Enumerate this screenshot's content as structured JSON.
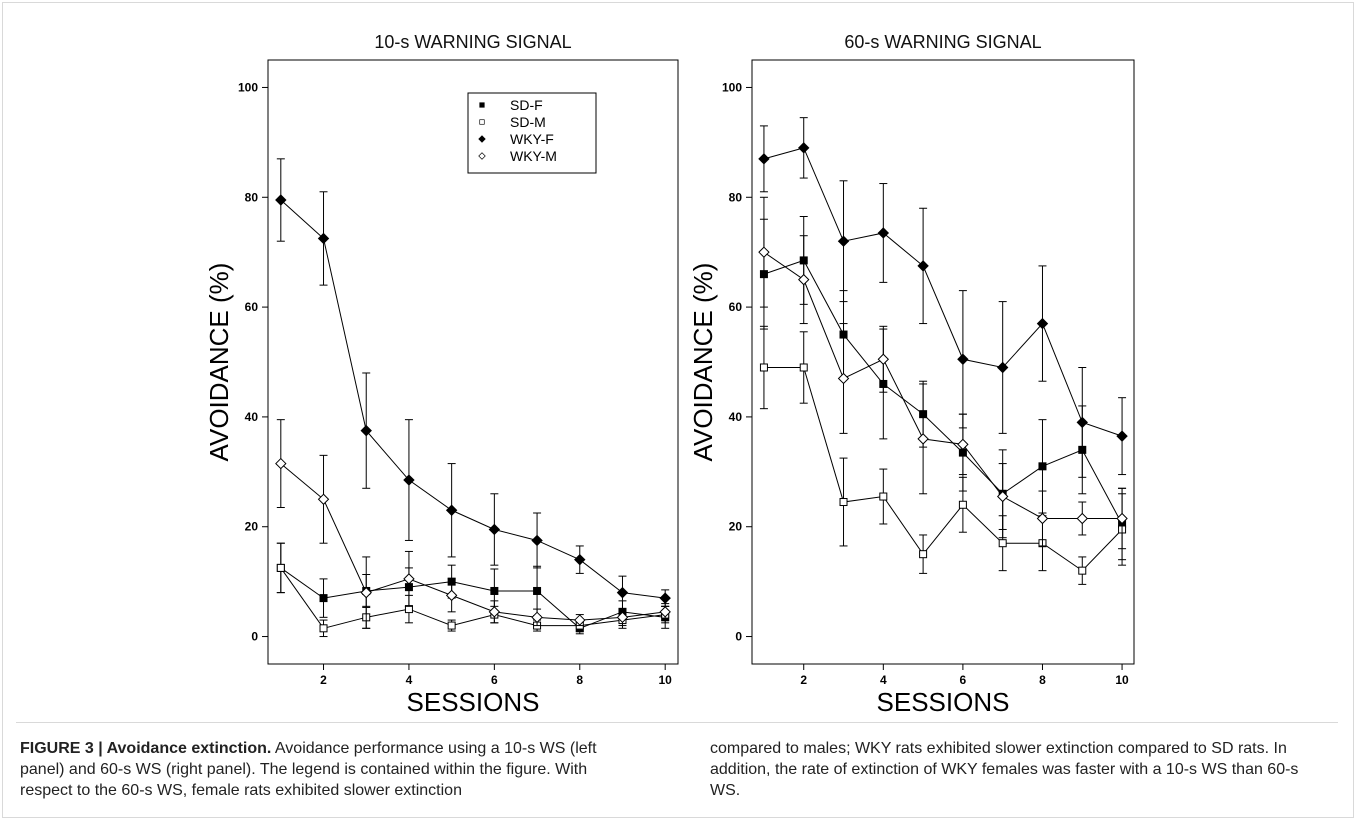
{
  "chart_data": [
    {
      "type": "line",
      "title": "10-s WARNING SIGNAL",
      "xlabel": "SESSIONS",
      "ylabel": "AVOIDANCE (%)",
      "xlim": [
        0.7,
        10.3
      ],
      "ylim": [
        -5,
        105
      ],
      "xticks": [
        2,
        4,
        6,
        8,
        10
      ],
      "yticks": [
        0,
        20,
        40,
        60,
        80,
        100
      ],
      "x": [
        1,
        2,
        3,
        4,
        5,
        6,
        7,
        8,
        9,
        10
      ],
      "legend": {
        "placement": "top-right"
      },
      "series": [
        {
          "name": "SD-F",
          "marker": "filled-square",
          "values": [
            12.5,
            7,
            8.3,
            9,
            10,
            8.3,
            8.3,
            1.5,
            4.5,
            3.5
          ],
          "errors": [
            4.5,
            3.5,
            3,
            3.5,
            3,
            4,
            4.5,
            1,
            2,
            2
          ]
        },
        {
          "name": "SD-M",
          "marker": "open-square",
          "values": [
            12.5,
            1.5,
            3.5,
            5,
            2,
            4,
            2,
            2,
            3,
            4
          ],
          "errors": [
            4.5,
            1.5,
            2,
            2.5,
            1,
            1.5,
            1,
            1,
            1.5,
            1.5
          ]
        },
        {
          "name": "WKY-F",
          "marker": "filled-diamond",
          "values": [
            79.5,
            72.5,
            37.5,
            28.5,
            23,
            19.5,
            17.5,
            14,
            8,
            7
          ],
          "errors": [
            7.5,
            8.5,
            10.5,
            11,
            8.5,
            6.5,
            5,
            2.5,
            3,
            1.5
          ]
        },
        {
          "name": "WKY-M",
          "marker": "open-diamond",
          "values": [
            31.5,
            25,
            8,
            10.5,
            7.5,
            4.5,
            3.5,
            3,
            3.5,
            4.5
          ],
          "errors": [
            8,
            8,
            6.5,
            5,
            3,
            2,
            1.5,
            1,
            1.5,
            1.5
          ]
        }
      ]
    },
    {
      "type": "line",
      "title": "60-s WARNING SIGNAL",
      "xlabel": "SESSIONS",
      "ylabel": "AVOIDANCE (%)",
      "xlim": [
        0.7,
        10.3
      ],
      "ylim": [
        -5,
        105
      ],
      "xticks": [
        2,
        4,
        6,
        8,
        10
      ],
      "yticks": [
        0,
        20,
        40,
        60,
        80,
        100
      ],
      "x": [
        1,
        2,
        3,
        4,
        5,
        6,
        7,
        8,
        9,
        10
      ],
      "series": [
        {
          "name": "SD-F",
          "marker": "filled-square",
          "values": [
            66,
            68.5,
            55,
            46,
            40.5,
            33.5,
            26,
            31,
            34,
            20.5
          ],
          "errors": [
            10,
            8,
            8,
            10,
            6,
            7,
            8,
            8.5,
            8,
            6.5
          ]
        },
        {
          "name": "SD-M",
          "marker": "open-square",
          "values": [
            49,
            49,
            24.5,
            25.5,
            15,
            24,
            17,
            17,
            12,
            19.5
          ],
          "errors": [
            7.5,
            6.5,
            8,
            5,
            3.5,
            5,
            5,
            5,
            2.5,
            6.5
          ]
        },
        {
          "name": "WKY-F",
          "marker": "filled-diamond",
          "values": [
            87,
            89,
            72,
            73.5,
            67.5,
            50.5,
            49,
            57,
            39,
            36.5
          ],
          "errors": [
            6,
            5.5,
            11,
            9,
            10.5,
            12.5,
            12,
            10.5,
            10,
            7
          ]
        },
        {
          "name": "WKY-M",
          "marker": "open-diamond",
          "values": [
            70,
            65,
            47,
            50.5,
            36,
            35,
            25.5,
            21.5,
            21.5,
            21.5
          ],
          "errors": [
            10,
            8,
            10,
            6,
            10,
            5.5,
            6,
            5,
            3,
            5.5
          ]
        }
      ]
    }
  ],
  "caption": {
    "label": "FIGURE 3 | Avoidance extinction.",
    "left_text": " Avoidance performance using a 10-s WS (left panel) and 60-s WS (right panel). The legend is contained within the figure. With respect to the 60-s WS, female rats exhibited slower extinction",
    "right_text": "compared to males; WKY rats exhibited slower extinction compared to SD rats. In addition, the rate of extinction of WKY females was faster with a 10-s WS than 60-s WS."
  }
}
